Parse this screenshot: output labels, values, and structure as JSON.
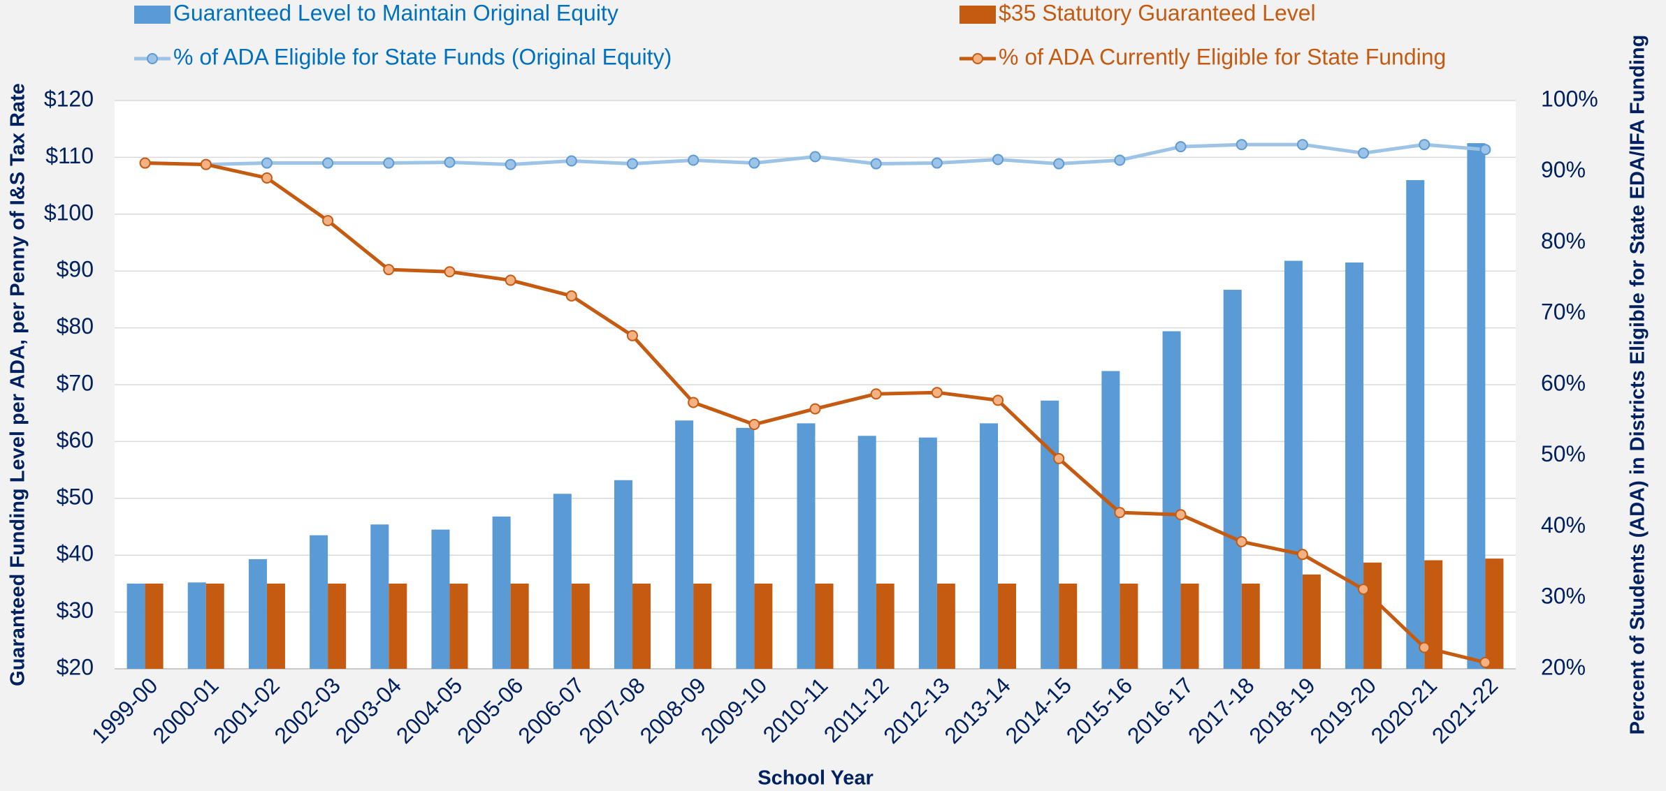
{
  "chart_data": {
    "type": "bar",
    "x_label": "School Year",
    "y_label": "Guaranteed Funding Level per ADA, per Penny of I&S Tax Rate",
    "y2_label": "Percent of Students (ADA) in Districts Eligible for State EDA/IFA Funding",
    "categories": [
      "1999-00",
      "2000-01",
      "2001-02",
      "2002-03",
      "2003-04",
      "2004-05",
      "2005-06",
      "2006-07",
      "2007-08",
      "2008-09",
      "2009-10",
      "2010-11",
      "2011-12",
      "2012-13",
      "2013-14",
      "2014-15",
      "2015-16",
      "2016-17",
      "2017-18",
      "2018-19",
      "2019-20",
      "2020-21",
      "2021-22"
    ],
    "series": [
      {
        "name": "Guaranteed Level to Maintain Original Equity",
        "type": "bar",
        "color": "#5b9bd5",
        "text_color": "#0070c0",
        "values": [
          35,
          35.2,
          39.3,
          43.5,
          45.4,
          44.5,
          46.8,
          50.8,
          53.2,
          63.7,
          62.4,
          63.2,
          61.0,
          60.7,
          63.2,
          67.2,
          72.4,
          79.4,
          86.7,
          91.8,
          91.5,
          106,
          112.5
        ]
      },
      {
        "name": "$35 Statutory Guaranteed Level",
        "type": "bar",
        "color": "#c55a11",
        "text_color": "#c55a11",
        "values": [
          35,
          35,
          35,
          35,
          35,
          35,
          35,
          35,
          35,
          35,
          35,
          35,
          35,
          35,
          35,
          35,
          35,
          35,
          35,
          36.6,
          38.7,
          39.1,
          39.4
        ]
      },
      {
        "name": "% of ADA Eligible for State Funds (Original Equity)",
        "type": "line",
        "axis": "y2",
        "color": "#9dc3e6",
        "marker_color": "#9dc3e6",
        "text_color": "#0070c0",
        "values": [
          91.2,
          91.0,
          91.2,
          91.2,
          91.2,
          91.3,
          91.0,
          91.5,
          91.1,
          91.6,
          91.2,
          92.1,
          91.1,
          91.2,
          91.7,
          91.1,
          91.6,
          93.5,
          93.8,
          93.8,
          92.6,
          93.8,
          93.1
        ]
      },
      {
        "name": "% of ADA Currently Eligible for State Funding",
        "type": "line",
        "axis": "y2",
        "color": "#c55a11",
        "marker_color": "#f4b183",
        "text_color": "#c55a11",
        "values": [
          91.2,
          91.0,
          89.1,
          83.1,
          76.2,
          75.9,
          74.7,
          72.5,
          66.9,
          57.5,
          54.4,
          56.6,
          58.7,
          58.9,
          57.8,
          49.6,
          42.0,
          41.7,
          37.9,
          36.1,
          31.2,
          23.0,
          20.9
        ]
      }
    ],
    "ylim": [
      20,
      120
    ],
    "yticks": [
      {
        "value": 20,
        "label": "$20"
      },
      {
        "value": 30,
        "label": "$30"
      },
      {
        "value": 40,
        "label": "$40"
      },
      {
        "value": 50,
        "label": "$50"
      },
      {
        "value": 60,
        "label": "$60"
      },
      {
        "value": 70,
        "label": "$70"
      },
      {
        "value": 80,
        "label": "$80"
      },
      {
        "value": 90,
        "label": "$90"
      },
      {
        "value": 100,
        "label": "$100"
      },
      {
        "value": 110,
        "label": "$110"
      },
      {
        "value": 120,
        "label": "$120"
      }
    ],
    "y2lim": [
      20,
      100
    ],
    "y2ticks": [
      {
        "value": 20,
        "label": "20%"
      },
      {
        "value": 30,
        "label": "30%"
      },
      {
        "value": 40,
        "label": "40%"
      },
      {
        "value": 50,
        "label": "50%"
      },
      {
        "value": 60,
        "label": "60%"
      },
      {
        "value": 70,
        "label": "70%"
      },
      {
        "value": 80,
        "label": "80%"
      },
      {
        "value": 90,
        "label": "90%"
      },
      {
        "value": 100,
        "label": "100%"
      }
    ],
    "grid": true
  }
}
